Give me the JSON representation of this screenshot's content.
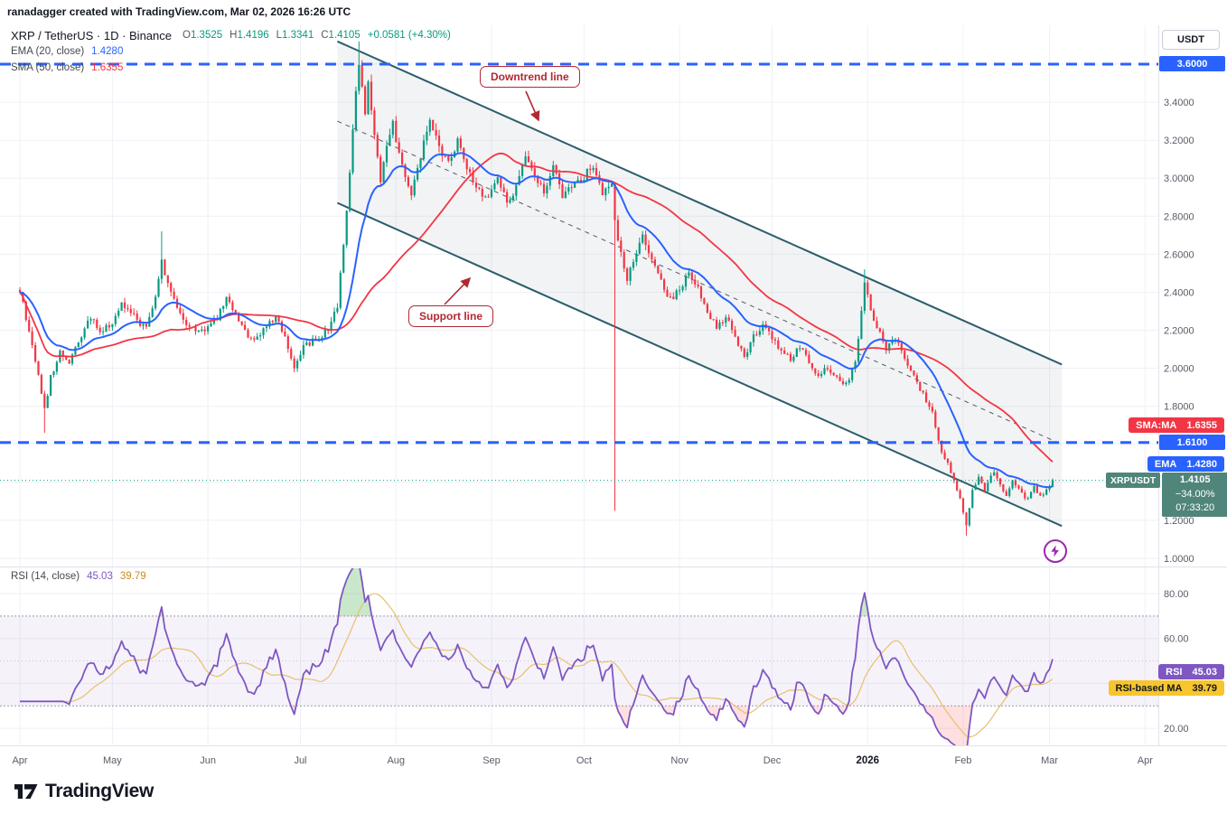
{
  "attribution": "ranadagger created with TradingView.com, Mar 02, 2026 16:26 UTC",
  "header": {
    "title": "XRP / TetherUS · 1D · Binance",
    "o_label": "O",
    "o": "1.3525",
    "h_label": "H",
    "h": "1.4196",
    "l_label": "L",
    "l": "1.3341",
    "c_label": "C",
    "c": "1.4105",
    "change": "+0.0581 (+4.30%)",
    "ema_label": "EMA (20, close)",
    "ema_value": "1.4280",
    "sma_label": "SMA (50, close)",
    "sma_value": "1.6355"
  },
  "annotations": {
    "downtrend": "Downtrend line",
    "support": "Support line"
  },
  "axis": {
    "currency": "USDT",
    "price_ticks": [
      "3.6000",
      "3.4000",
      "3.2000",
      "3.0000",
      "2.8000",
      "2.6000",
      "2.4000",
      "2.2000",
      "2.0000",
      "1.8000",
      "1.6000",
      "1.4000",
      "1.2000",
      "1.0000"
    ],
    "rsi_ticks": [
      "80.00",
      "60.00",
      "40.00",
      "20.00"
    ],
    "months": [
      "Apr",
      "May",
      "Jun",
      "Jul",
      "Aug",
      "Sep",
      "Oct",
      "Nov",
      "Dec",
      "2026",
      "Feb",
      "Mar",
      "Apr"
    ]
  },
  "price_labels": {
    "currency": "USDT",
    "top_line": "3.6000",
    "sma_tag": "SMA:MA",
    "sma_value": "1.6355",
    "level_value": "1.6100",
    "ema_tag": "EMA",
    "ema_value": "1.4280",
    "symbol_tag": "XRPUSDT",
    "last_price": "1.4105",
    "change_pct": "−34.00%",
    "countdown": "07:33:20"
  },
  "rsi_panel": {
    "legend": "RSI (14, close)",
    "value": "45.03",
    "ma_value": "39.79",
    "tag": "RSI",
    "ma_tag": "RSI-based MA"
  },
  "logo_text": "TradingView",
  "colors": {
    "up": "#089981",
    "down": "#f23645",
    "ema": "#2962ff",
    "sma": "#f23645",
    "rsi": "#7e57c2",
    "rsi_ma": "#e8c06c",
    "level": "#2962ff",
    "channel": "#2a5d6b",
    "annotation": "#b22833",
    "last_label": "#50857b",
    "grid": "#eef1f6",
    "axis_text": "#585c66"
  },
  "chart_data": {
    "type": "candlestick",
    "symbol": "XRP/TetherUS",
    "exchange": "Binance",
    "timeframe": "1D",
    "title": "XRP / TetherUS · 1D · Binance",
    "ohlc_current": {
      "open": 1.3525,
      "high": 1.4196,
      "low": 1.3341,
      "close": 1.4105,
      "change": 0.0581,
      "change_pct": 4.3
    },
    "indicators": {
      "ema20": 1.428,
      "sma50": 1.6355,
      "rsi14": 45.03,
      "rsi_based_ma": 39.79
    },
    "levels": {
      "resistance_dashed": 3.6,
      "support_dashed": 1.61
    },
    "price_axis_ticks": [
      3.6,
      3.4,
      3.2,
      3.0,
      2.8,
      2.6,
      2.4,
      2.2,
      2.0,
      1.8,
      1.6,
      1.4,
      1.2,
      1.0
    ],
    "rsi_axis_ticks": [
      80,
      60,
      40,
      20
    ],
    "rsi_band": [
      70,
      30
    ],
    "month_start_days": [
      0,
      30,
      61,
      91,
      122,
      153,
      183,
      214,
      244,
      275,
      306,
      334,
      365
    ],
    "last_close": 1.4105,
    "price_path": [
      [
        0,
        2.42
      ],
      [
        2,
        2.25
      ],
      [
        5,
        2.05
      ],
      [
        8,
        1.78
      ],
      [
        10,
        1.95
      ],
      [
        13,
        2.08
      ],
      [
        16,
        2.02
      ],
      [
        20,
        2.17
      ],
      [
        23,
        2.27
      ],
      [
        26,
        2.18
      ],
      [
        30,
        2.24
      ],
      [
        33,
        2.34
      ],
      [
        37,
        2.27
      ],
      [
        41,
        2.21
      ],
      [
        44,
        2.38
      ],
      [
        46,
        2.56
      ],
      [
        48,
        2.45
      ],
      [
        51,
        2.3
      ],
      [
        55,
        2.22
      ],
      [
        58,
        2.18
      ],
      [
        61,
        2.21
      ],
      [
        64,
        2.27
      ],
      [
        67,
        2.36
      ],
      [
        71,
        2.26
      ],
      [
        75,
        2.15
      ],
      [
        79,
        2.2
      ],
      [
        83,
        2.27
      ],
      [
        86,
        2.16
      ],
      [
        89,
        1.99
      ],
      [
        92,
        2.11
      ],
      [
        96,
        2.15
      ],
      [
        100,
        2.2
      ],
      [
        103,
        2.32
      ],
      [
        105,
        2.65
      ],
      [
        107,
        3.05
      ],
      [
        109,
        3.48
      ],
      [
        110,
        3.62
      ],
      [
        112,
        3.35
      ],
      [
        113,
        3.52
      ],
      [
        115,
        3.22
      ],
      [
        117,
        2.97
      ],
      [
        119,
        3.18
      ],
      [
        121,
        3.28
      ],
      [
        124,
        3.08
      ],
      [
        127,
        2.92
      ],
      [
        130,
        3.12
      ],
      [
        133,
        3.3
      ],
      [
        136,
        3.17
      ],
      [
        139,
        3.08
      ],
      [
        142,
        3.2
      ],
      [
        145,
        3.06
      ],
      [
        148,
        2.96
      ],
      [
        152,
        2.89
      ],
      [
        155,
        3.0
      ],
      [
        158,
        2.86
      ],
      [
        161,
        2.96
      ],
      [
        164,
        3.1
      ],
      [
        167,
        3.01
      ],
      [
        170,
        2.94
      ],
      [
        173,
        3.05
      ],
      [
        176,
        2.91
      ],
      [
        179,
        2.95
      ],
      [
        183,
        3.01
      ],
      [
        186,
        3.06
      ],
      [
        189,
        2.92
      ],
      [
        192,
        2.96
      ],
      [
        193,
        2.76
      ],
      [
        195,
        2.6
      ],
      [
        197,
        2.46
      ],
      [
        199,
        2.56
      ],
      [
        202,
        2.69
      ],
      [
        205,
        2.59
      ],
      [
        208,
        2.46
      ],
      [
        211,
        2.36
      ],
      [
        214,
        2.41
      ],
      [
        217,
        2.5
      ],
      [
        220,
        2.42
      ],
      [
        223,
        2.31
      ],
      [
        226,
        2.21
      ],
      [
        229,
        2.28
      ],
      [
        232,
        2.16
      ],
      [
        235,
        2.05
      ],
      [
        238,
        2.17
      ],
      [
        241,
        2.22
      ],
      [
        244,
        2.16
      ],
      [
        247,
        2.1
      ],
      [
        250,
        2.05
      ],
      [
        253,
        2.12
      ],
      [
        256,
        2.03
      ],
      [
        259,
        1.96
      ],
      [
        262,
        2.01
      ],
      [
        265,
        1.95
      ],
      [
        268,
        1.91
      ],
      [
        271,
        2.04
      ],
      [
        273,
        2.3
      ],
      [
        274,
        2.44
      ],
      [
        276,
        2.31
      ],
      [
        278,
        2.21
      ],
      [
        281,
        2.11
      ],
      [
        284,
        2.16
      ],
      [
        287,
        2.06
      ],
      [
        290,
        1.96
      ],
      [
        293,
        1.86
      ],
      [
        296,
        1.76
      ],
      [
        299,
        1.56
      ],
      [
        302,
        1.46
      ],
      [
        305,
        1.31
      ],
      [
        307,
        1.18
      ],
      [
        309,
        1.36
      ],
      [
        311,
        1.43
      ],
      [
        313,
        1.36
      ],
      [
        316,
        1.46
      ],
      [
        318,
        1.39
      ],
      [
        320,
        1.33
      ],
      [
        322,
        1.41
      ],
      [
        324,
        1.36
      ],
      [
        327,
        1.31
      ],
      [
        329,
        1.37
      ],
      [
        331,
        1.33
      ],
      [
        333,
        1.36
      ],
      [
        335,
        1.41
      ]
    ],
    "wick_events": [
      [
        8,
        1.66,
        null
      ],
      [
        46,
        null,
        2.72
      ],
      [
        110,
        null,
        3.72
      ],
      [
        193,
        1.25,
        null
      ],
      [
        274,
        null,
        2.52
      ],
      [
        307,
        1.12,
        null
      ]
    ],
    "channel": {
      "upper": [
        [
          103,
          3.72
        ],
        [
          338,
          2.02
        ]
      ],
      "lower": [
        [
          103,
          2.87
        ],
        [
          338,
          1.17
        ]
      ],
      "mid": [
        [
          103,
          3.3
        ],
        [
          338,
          1.6
        ]
      ]
    }
  }
}
